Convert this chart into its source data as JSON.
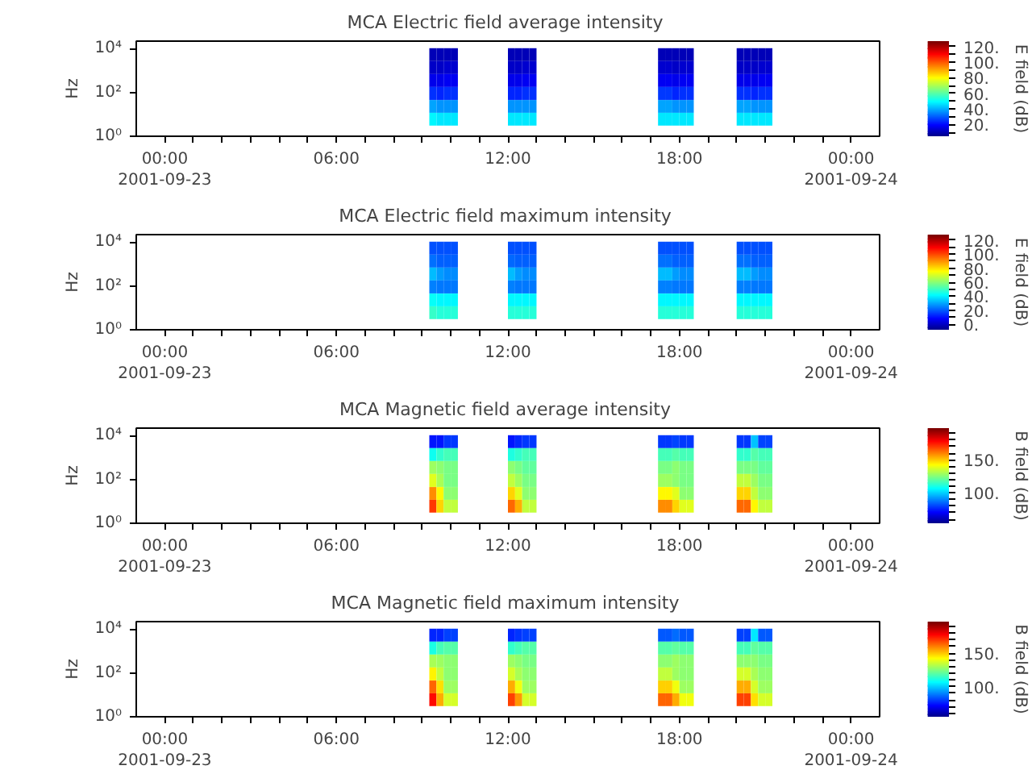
{
  "chart_data": [
    {
      "type": "heatmap",
      "title": "MCA  Electric field average intensity",
      "ylabel": "Hz",
      "clabel": "E field (dB)",
      "x": [
        9.375,
        9.625,
        9.875,
        10.125,
        10.375,
        10.625,
        10.875,
        11.125,
        11.375,
        11.625,
        11.875,
        12.125,
        12.375,
        12.625,
        12.875,
        13.125,
        13.375,
        13.625,
        13.875,
        14.125,
        14.375,
        14.625,
        14.875,
        15.125,
        15.375,
        15.625,
        15.875,
        16.125,
        16.375,
        16.625,
        16.875,
        17.125,
        17.375,
        17.625,
        17.875,
        18.125,
        18.375,
        18.625,
        18.875,
        19.125,
        19.375,
        19.625,
        19.875,
        20.125,
        20.375,
        20.625,
        20.875,
        21.125
      ],
      "y": [
        5300,
        1360,
        350,
        90,
        23,
        6
      ],
      "cells": [
        [
          12,
          12,
          12,
          12,
          null,
          null,
          null,
          null,
          null,
          null,
          null,
          12,
          12,
          12,
          12,
          null,
          null,
          null,
          null,
          null,
          null,
          null,
          null,
          null,
          null,
          null,
          null,
          null,
          null,
          null,
          null,
          null,
          12,
          12,
          12,
          12,
          12,
          null,
          null,
          null,
          null,
          null,
          null,
          12,
          12,
          12,
          12,
          12
        ],
        [
          14,
          14,
          15,
          15,
          null,
          null,
          null,
          null,
          null,
          null,
          null,
          14,
          14,
          15,
          15,
          null,
          null,
          null,
          null,
          null,
          null,
          null,
          null,
          null,
          null,
          null,
          null,
          null,
          null,
          null,
          null,
          null,
          15,
          15,
          14,
          15,
          15,
          null,
          null,
          null,
          null,
          null,
          null,
          14,
          14,
          14,
          15,
          15
        ],
        [
          18,
          18,
          19,
          19,
          null,
          null,
          null,
          null,
          null,
          null,
          null,
          18,
          18,
          19,
          19,
          null,
          null,
          null,
          null,
          null,
          null,
          null,
          null,
          null,
          null,
          null,
          null,
          null,
          null,
          null,
          null,
          null,
          19,
          19,
          18,
          19,
          19,
          null,
          null,
          null,
          null,
          null,
          null,
          18,
          18,
          18,
          19,
          19
        ],
        [
          26,
          25,
          26,
          26,
          null,
          null,
          null,
          null,
          null,
          null,
          null,
          25,
          25,
          26,
          26,
          null,
          null,
          null,
          null,
          null,
          null,
          null,
          null,
          null,
          null,
          null,
          null,
          null,
          null,
          null,
          null,
          null,
          27,
          27,
          25,
          26,
          26,
          null,
          null,
          null,
          null,
          null,
          null,
          26,
          26,
          25,
          26,
          26
        ],
        [
          40,
          38,
          38,
          38,
          null,
          null,
          null,
          null,
          null,
          null,
          null,
          38,
          38,
          38,
          38,
          null,
          null,
          null,
          null,
          null,
          null,
          null,
          null,
          null,
          null,
          null,
          null,
          null,
          null,
          null,
          null,
          null,
          40,
          40,
          38,
          38,
          38,
          null,
          null,
          null,
          null,
          null,
          null,
          40,
          40,
          38,
          38,
          38
        ],
        [
          50,
          48,
          48,
          48,
          null,
          null,
          null,
          null,
          null,
          null,
          null,
          48,
          48,
          48,
          48,
          null,
          null,
          null,
          null,
          null,
          null,
          null,
          null,
          null,
          null,
          null,
          null,
          null,
          null,
          null,
          null,
          null,
          48,
          48,
          48,
          48,
          48,
          null,
          null,
          null,
          null,
          null,
          null,
          48,
          48,
          48,
          48,
          48
        ]
      ],
      "xlim": [
        -1,
        25
      ],
      "xticks": [
        {
          "value": 0,
          "label": "00:00\n2001-09-23"
        },
        {
          "value": 1,
          "label": null
        },
        {
          "value": 2,
          "label": null
        },
        {
          "value": 3,
          "label": null
        },
        {
          "value": 4,
          "label": null
        },
        {
          "value": 5,
          "label": null
        },
        {
          "value": 6,
          "label": "06:00"
        },
        {
          "value": 7,
          "label": null
        },
        {
          "value": 8,
          "label": null
        },
        {
          "value": 9,
          "label": null
        },
        {
          "value": 10,
          "label": null
        },
        {
          "value": 11,
          "label": null
        },
        {
          "value": 12,
          "label": "12:00"
        },
        {
          "value": 13,
          "label": null
        },
        {
          "value": 14,
          "label": null
        },
        {
          "value": 15,
          "label": null
        },
        {
          "value": 16,
          "label": null
        },
        {
          "value": 17,
          "label": null
        },
        {
          "value": 18,
          "label": "18:00"
        },
        {
          "value": 19,
          "label": null
        },
        {
          "value": 20,
          "label": null
        },
        {
          "value": 21,
          "label": null
        },
        {
          "value": 22,
          "label": null
        },
        {
          "value": 23,
          "label": null
        },
        {
          "value": 24,
          "label": "00:00\n2001-09-24"
        }
      ],
      "ylim": [
        1,
        22000
      ],
      "yticks": [
        {
          "value": 1,
          "label": "10⁰"
        },
        {
          "value": 100,
          "label": "10²"
        },
        {
          "value": 10000,
          "label": "10⁴"
        }
      ],
      "log": "y",
      "clim": [
        5,
        127
      ],
      "cticks": [
        {
          "value": 10,
          "label": null
        },
        {
          "value": 20,
          "label": "20."
        },
        {
          "value": 30,
          "label": null
        },
        {
          "value": 40,
          "label": "40."
        },
        {
          "value": 50,
          "label": null
        },
        {
          "value": 60,
          "label": "60."
        },
        {
          "value": 70,
          "label": null
        },
        {
          "value": 80,
          "label": "80."
        },
        {
          "value": 90,
          "label": null
        },
        {
          "value": 100,
          "label": "100."
        },
        {
          "value": 110,
          "label": null
        },
        {
          "value": 120,
          "label": "120."
        }
      ]
    },
    {
      "type": "heatmap",
      "title": "MCA  Electric field maximum intensity",
      "ylabel": "Hz",
      "clabel": "E field (dB)",
      "x": [
        9.375,
        9.625,
        9.875,
        10.125,
        10.375,
        10.625,
        10.875,
        11.125,
        11.375,
        11.625,
        11.875,
        12.125,
        12.375,
        12.625,
        12.875,
        13.125,
        13.375,
        13.625,
        13.875,
        14.125,
        14.375,
        14.625,
        14.875,
        15.125,
        15.375,
        15.625,
        15.875,
        16.125,
        16.375,
        16.625,
        16.875,
        17.125,
        17.375,
        17.625,
        17.875,
        18.125,
        18.375,
        18.625,
        18.875,
        19.125,
        19.375,
        19.625,
        19.875,
        20.125,
        20.375,
        20.625,
        20.875,
        21.125
      ],
      "y": [
        5300,
        1360,
        350,
        90,
        23,
        6
      ],
      "cells": [
        [
          20,
          20,
          20,
          20,
          null,
          null,
          null,
          null,
          null,
          null,
          null,
          20,
          20,
          20,
          20,
          null,
          null,
          null,
          null,
          null,
          null,
          null,
          null,
          null,
          null,
          null,
          null,
          null,
          null,
          null,
          null,
          null,
          20,
          20,
          20,
          20,
          20,
          null,
          null,
          null,
          null,
          null,
          null,
          20,
          20,
          20,
          20,
          20
        ],
        [
          24,
          22,
          22,
          22,
          null,
          null,
          null,
          null,
          null,
          null,
          null,
          23,
          22,
          22,
          22,
          null,
          null,
          null,
          null,
          null,
          null,
          null,
          null,
          null,
          null,
          null,
          null,
          null,
          null,
          null,
          null,
          null,
          24,
          24,
          22,
          22,
          22,
          null,
          null,
          null,
          null,
          null,
          null,
          24,
          24,
          22,
          22,
          22
        ],
        [
          34,
          30,
          28,
          28,
          null,
          null,
          null,
          null,
          null,
          null,
          null,
          34,
          30,
          28,
          28,
          null,
          null,
          null,
          null,
          null,
          null,
          null,
          null,
          null,
          null,
          null,
          null,
          null,
          null,
          null,
          null,
          null,
          34,
          34,
          30,
          28,
          28,
          null,
          null,
          null,
          null,
          null,
          null,
          34,
          34,
          30,
          28,
          28
        ],
        [
          26,
          25,
          25,
          25,
          null,
          null,
          null,
          null,
          null,
          null,
          null,
          26,
          25,
          25,
          25,
          null,
          null,
          null,
          null,
          null,
          null,
          null,
          null,
          null,
          null,
          null,
          null,
          null,
          null,
          null,
          null,
          null,
          26,
          26,
          25,
          25,
          25,
          null,
          null,
          null,
          null,
          null,
          null,
          26,
          26,
          25,
          25,
          25
        ],
        [
          44,
          42,
          42,
          42,
          null,
          null,
          null,
          null,
          null,
          null,
          null,
          42,
          42,
          42,
          42,
          null,
          null,
          null,
          null,
          null,
          null,
          null,
          null,
          null,
          null,
          null,
          null,
          null,
          null,
          null,
          null,
          null,
          42,
          42,
          42,
          42,
          42,
          null,
          null,
          null,
          null,
          null,
          null,
          42,
          42,
          42,
          42,
          42
        ],
        [
          50,
          48,
          48,
          48,
          null,
          null,
          null,
          null,
          null,
          null,
          null,
          48,
          48,
          48,
          48,
          null,
          null,
          null,
          null,
          null,
          null,
          null,
          null,
          null,
          null,
          null,
          null,
          null,
          null,
          null,
          null,
          null,
          48,
          48,
          48,
          48,
          48,
          null,
          null,
          null,
          null,
          null,
          null,
          48,
          48,
          48,
          48,
          48
        ]
      ],
      "xlim": [
        -1,
        25
      ],
      "xticks": [
        {
          "value": 0,
          "label": "00:00\n2001-09-23"
        },
        {
          "value": 1,
          "label": null
        },
        {
          "value": 2,
          "label": null
        },
        {
          "value": 3,
          "label": null
        },
        {
          "value": 4,
          "label": null
        },
        {
          "value": 5,
          "label": null
        },
        {
          "value": 6,
          "label": "06:00"
        },
        {
          "value": 7,
          "label": null
        },
        {
          "value": 8,
          "label": null
        },
        {
          "value": 9,
          "label": null
        },
        {
          "value": 10,
          "label": null
        },
        {
          "value": 11,
          "label": null
        },
        {
          "value": 12,
          "label": "12:00"
        },
        {
          "value": 13,
          "label": null
        },
        {
          "value": 14,
          "label": null
        },
        {
          "value": 15,
          "label": null
        },
        {
          "value": 16,
          "label": null
        },
        {
          "value": 17,
          "label": null
        },
        {
          "value": 18,
          "label": "18:00"
        },
        {
          "value": 19,
          "label": null
        },
        {
          "value": 20,
          "label": null
        },
        {
          "value": 21,
          "label": null
        },
        {
          "value": 22,
          "label": null
        },
        {
          "value": 23,
          "label": null
        },
        {
          "value": 24,
          "label": "00:00\n2001-09-24"
        }
      ],
      "ylim": [
        1,
        22000
      ],
      "yticks": [
        {
          "value": 1,
          "label": "10⁰"
        },
        {
          "value": 100,
          "label": "10²"
        },
        {
          "value": 10000,
          "label": "10⁴"
        }
      ],
      "log": "y",
      "clim": [
        -8,
        128
      ],
      "cticks": [
        {
          "value": 0,
          "label": "0."
        },
        {
          "value": 10,
          "label": null
        },
        {
          "value": 20,
          "label": "20."
        },
        {
          "value": 30,
          "label": null
        },
        {
          "value": 40,
          "label": "40."
        },
        {
          "value": 50,
          "label": null
        },
        {
          "value": 60,
          "label": "60."
        },
        {
          "value": 70,
          "label": null
        },
        {
          "value": 80,
          "label": "80."
        },
        {
          "value": 90,
          "label": null
        },
        {
          "value": 100,
          "label": "100."
        },
        {
          "value": 110,
          "label": null
        },
        {
          "value": 120,
          "label": "120."
        }
      ]
    },
    {
      "type": "heatmap",
      "title": "MCA  Magnetic field average intensity",
      "ylabel": "Hz",
      "clabel": "B field (dB)",
      "x": [
        9.375,
        9.625,
        9.875,
        10.125,
        10.375,
        10.625,
        10.875,
        11.125,
        11.375,
        11.625,
        11.875,
        12.125,
        12.375,
        12.625,
        12.875,
        13.125,
        13.375,
        13.625,
        13.875,
        14.125,
        14.375,
        14.625,
        14.875,
        15.125,
        15.375,
        15.625,
        15.875,
        16.125,
        16.375,
        16.625,
        16.875,
        17.125,
        17.375,
        17.625,
        17.875,
        18.125,
        18.375,
        18.625,
        18.875,
        19.125,
        19.375,
        19.625,
        19.875,
        20.125,
        20.375,
        20.625,
        20.875,
        21.125
      ],
      "y": [
        5300,
        1360,
        350,
        90,
        23,
        6
      ],
      "cells": [
        [
          75,
          75,
          80,
          80,
          null,
          null,
          null,
          null,
          null,
          null,
          null,
          75,
          78,
          80,
          80,
          null,
          null,
          null,
          null,
          null,
          null,
          null,
          null,
          null,
          null,
          null,
          null,
          null,
          null,
          null,
          null,
          null,
          80,
          80,
          82,
          80,
          80,
          null,
          null,
          null,
          null,
          null,
          null,
          80,
          80,
          100,
          82,
          82
        ],
        [
          110,
          115,
          118,
          118,
          null,
          null,
          null,
          null,
          null,
          null,
          null,
          112,
          115,
          118,
          118,
          null,
          null,
          null,
          null,
          null,
          null,
          null,
          null,
          null,
          null,
          null,
          null,
          null,
          null,
          null,
          null,
          null,
          118,
          118,
          120,
          118,
          118,
          null,
          null,
          null,
          null,
          null,
          null,
          115,
          115,
          120,
          118,
          118
        ],
        [
          130,
          128,
          125,
          125,
          null,
          null,
          null,
          null,
          null,
          null,
          null,
          128,
          125,
          122,
          122,
          null,
          null,
          null,
          null,
          null,
          null,
          null,
          null,
          null,
          null,
          null,
          null,
          null,
          null,
          null,
          null,
          null,
          125,
          125,
          128,
          125,
          125,
          null,
          null,
          null,
          null,
          null,
          null,
          125,
          125,
          125,
          122,
          122
        ],
        [
          140,
          132,
          125,
          125,
          null,
          null,
          null,
          null,
          null,
          null,
          null,
          135,
          130,
          125,
          125,
          null,
          null,
          null,
          null,
          null,
          null,
          null,
          null,
          null,
          null,
          null,
          null,
          null,
          null,
          null,
          null,
          null,
          130,
          130,
          128,
          125,
          125,
          null,
          null,
          null,
          null,
          null,
          null,
          135,
          135,
          130,
          125,
          125
        ],
        [
          160,
          145,
          128,
          128,
          null,
          null,
          null,
          null,
          null,
          null,
          null,
          150,
          140,
          128,
          128,
          null,
          null,
          null,
          null,
          null,
          null,
          null,
          null,
          null,
          null,
          null,
          null,
          null,
          null,
          null,
          null,
          null,
          145,
          145,
          140,
          128,
          128,
          null,
          null,
          null,
          null,
          null,
          null,
          150,
          150,
          135,
          128,
          128
        ],
        [
          172,
          150,
          135,
          135,
          null,
          null,
          null,
          null,
          null,
          null,
          null,
          165,
          155,
          135,
          135,
          null,
          null,
          null,
          null,
          null,
          null,
          null,
          null,
          null,
          null,
          null,
          null,
          null,
          null,
          null,
          null,
          null,
          160,
          160,
          150,
          140,
          140,
          null,
          null,
          null,
          null,
          null,
          null,
          165,
          165,
          145,
          135,
          135
        ]
      ],
      "xlim": [
        -1,
        25
      ],
      "xticks": [
        {
          "value": 0,
          "label": "00:00\n2001-09-23"
        },
        {
          "value": 1,
          "label": null
        },
        {
          "value": 2,
          "label": null
        },
        {
          "value": 3,
          "label": null
        },
        {
          "value": 4,
          "label": null
        },
        {
          "value": 5,
          "label": null
        },
        {
          "value": 6,
          "label": "06:00"
        },
        {
          "value": 7,
          "label": null
        },
        {
          "value": 8,
          "label": null
        },
        {
          "value": 9,
          "label": null
        },
        {
          "value": 10,
          "label": null
        },
        {
          "value": 11,
          "label": null
        },
        {
          "value": 12,
          "label": "12:00"
        },
        {
          "value": 13,
          "label": null
        },
        {
          "value": 14,
          "label": null
        },
        {
          "value": 15,
          "label": null
        },
        {
          "value": 16,
          "label": null
        },
        {
          "value": 17,
          "label": null
        },
        {
          "value": 18,
          "label": "18:00"
        },
        {
          "value": 19,
          "label": null
        },
        {
          "value": 20,
          "label": null
        },
        {
          "value": 21,
          "label": null
        },
        {
          "value": 22,
          "label": null
        },
        {
          "value": 23,
          "label": null
        },
        {
          "value": 24,
          "label": "00:00\n2001-09-24"
        }
      ],
      "ylim": [
        1,
        22000
      ],
      "yticks": [
        {
          "value": 1,
          "label": "10⁰"
        },
        {
          "value": 100,
          "label": "10²"
        },
        {
          "value": 10000,
          "label": "10⁴"
        }
      ],
      "log": "y",
      "clim": [
        54,
        198
      ],
      "cticks": [
        {
          "value": 60,
          "label": null
        },
        {
          "value": 70,
          "label": null
        },
        {
          "value": 80,
          "label": null
        },
        {
          "value": 90,
          "label": null
        },
        {
          "value": 100,
          "label": "100."
        },
        {
          "value": 110,
          "label": null
        },
        {
          "value": 120,
          "label": null
        },
        {
          "value": 130,
          "label": null
        },
        {
          "value": 140,
          "label": null
        },
        {
          "value": 150,
          "label": "150."
        },
        {
          "value": 160,
          "label": null
        },
        {
          "value": 170,
          "label": null
        },
        {
          "value": 180,
          "label": null
        },
        {
          "value": 190,
          "label": null
        }
      ]
    },
    {
      "type": "heatmap",
      "title": "MCA  Magnetic field maximum intensity",
      "ylabel": "Hz",
      "clabel": "B field (dB)",
      "x": [
        9.375,
        9.625,
        9.875,
        10.125,
        10.375,
        10.625,
        10.875,
        11.125,
        11.375,
        11.625,
        11.875,
        12.125,
        12.375,
        12.625,
        12.875,
        13.125,
        13.375,
        13.625,
        13.875,
        14.125,
        14.375,
        14.625,
        14.875,
        15.125,
        15.375,
        15.625,
        15.875,
        16.125,
        16.375,
        16.625,
        16.875,
        17.125,
        17.375,
        17.625,
        17.875,
        18.125,
        18.375,
        18.625,
        18.875,
        19.125,
        19.375,
        19.625,
        19.875,
        20.125,
        20.375,
        20.625,
        20.875,
        21.125
      ],
      "y": [
        5300,
        1360,
        350,
        90,
        23,
        6
      ],
      "cells": [
        [
          78,
          78,
          82,
          82,
          null,
          null,
          null,
          null,
          null,
          null,
          null,
          78,
          80,
          82,
          82,
          null,
          null,
          null,
          null,
          null,
          null,
          null,
          null,
          null,
          null,
          null,
          null,
          null,
          null,
          null,
          null,
          null,
          85,
          85,
          88,
          85,
          85,
          null,
          null,
          null,
          null,
          null,
          null,
          82,
          82,
          105,
          85,
          85
        ],
        [
          112,
          118,
          120,
          120,
          null,
          null,
          null,
          null,
          null,
          null,
          null,
          115,
          118,
          120,
          120,
          null,
          null,
          null,
          null,
          null,
          null,
          null,
          null,
          null,
          null,
          null,
          null,
          null,
          null,
          null,
          null,
          null,
          120,
          120,
          122,
          120,
          120,
          null,
          null,
          null,
          null,
          null,
          null,
          118,
          118,
          122,
          120,
          120
        ],
        [
          132,
          130,
          128,
          128,
          null,
          null,
          null,
          null,
          null,
          null,
          null,
          130,
          128,
          125,
          125,
          null,
          null,
          null,
          null,
          null,
          null,
          null,
          null,
          null,
          null,
          null,
          null,
          null,
          null,
          null,
          null,
          null,
          128,
          128,
          130,
          128,
          128,
          null,
          null,
          null,
          null,
          null,
          null,
          128,
          128,
          128,
          125,
          125
        ],
        [
          145,
          135,
          128,
          128,
          null,
          null,
          null,
          null,
          null,
          null,
          null,
          138,
          132,
          128,
          128,
          null,
          null,
          null,
          null,
          null,
          null,
          null,
          null,
          null,
          null,
          null,
          null,
          null,
          null,
          null,
          null,
          null,
          135,
          135,
          130,
          128,
          128,
          null,
          null,
          null,
          null,
          null,
          null,
          138,
          138,
          132,
          128,
          128
        ],
        [
          165,
          148,
          130,
          130,
          null,
          null,
          null,
          null,
          null,
          null,
          null,
          155,
          142,
          130,
          130,
          null,
          null,
          null,
          null,
          null,
          null,
          null,
          null,
          null,
          null,
          null,
          null,
          null,
          null,
          null,
          null,
          null,
          150,
          150,
          142,
          130,
          130,
          null,
          null,
          null,
          null,
          null,
          null,
          155,
          155,
          138,
          130,
          130
        ],
        [
          178,
          155,
          138,
          138,
          null,
          null,
          null,
          null,
          null,
          null,
          null,
          170,
          158,
          138,
          138,
          null,
          null,
          null,
          null,
          null,
          null,
          null,
          null,
          null,
          null,
          null,
          null,
          null,
          null,
          null,
          null,
          null,
          165,
          165,
          155,
          142,
          142,
          null,
          null,
          null,
          null,
          null,
          null,
          170,
          170,
          148,
          138,
          138
        ]
      ],
      "xlim": [
        -1,
        25
      ],
      "xticks": [
        {
          "value": 0,
          "label": "00:00\n2001-09-23"
        },
        {
          "value": 1,
          "label": null
        },
        {
          "value": 2,
          "label": null
        },
        {
          "value": 3,
          "label": null
        },
        {
          "value": 4,
          "label": null
        },
        {
          "value": 5,
          "label": null
        },
        {
          "value": 6,
          "label": "06:00"
        },
        {
          "value": 7,
          "label": null
        },
        {
          "value": 8,
          "label": null
        },
        {
          "value": 9,
          "label": null
        },
        {
          "value": 10,
          "label": null
        },
        {
          "value": 11,
          "label": null
        },
        {
          "value": 12,
          "label": "12:00"
        },
        {
          "value": 13,
          "label": null
        },
        {
          "value": 14,
          "label": null
        },
        {
          "value": 15,
          "label": null
        },
        {
          "value": 16,
          "label": null
        },
        {
          "value": 17,
          "label": null
        },
        {
          "value": 18,
          "label": "18:00"
        },
        {
          "value": 19,
          "label": null
        },
        {
          "value": 20,
          "label": null
        },
        {
          "value": 21,
          "label": null
        },
        {
          "value": 22,
          "label": null
        },
        {
          "value": 23,
          "label": null
        },
        {
          "value": 24,
          "label": "00:00\n2001-09-24"
        }
      ],
      "ylim": [
        1,
        22000
      ],
      "yticks": [
        {
          "value": 1,
          "label": "10⁰"
        },
        {
          "value": 100,
          "label": "10²"
        },
        {
          "value": 10000,
          "label": "10⁴"
        }
      ],
      "log": "y",
      "clim": [
        55,
        197
      ],
      "cticks": [
        {
          "value": 60,
          "label": null
        },
        {
          "value": 70,
          "label": null
        },
        {
          "value": 80,
          "label": null
        },
        {
          "value": 90,
          "label": null
        },
        {
          "value": 100,
          "label": "100."
        },
        {
          "value": 110,
          "label": null
        },
        {
          "value": 120,
          "label": null
        },
        {
          "value": 130,
          "label": null
        },
        {
          "value": 140,
          "label": null
        },
        {
          "value": 150,
          "label": "150."
        },
        {
          "value": 160,
          "label": null
        },
        {
          "value": 170,
          "label": null
        },
        {
          "value": 180,
          "label": null
        },
        {
          "value": 190,
          "label": null
        }
      ]
    }
  ]
}
